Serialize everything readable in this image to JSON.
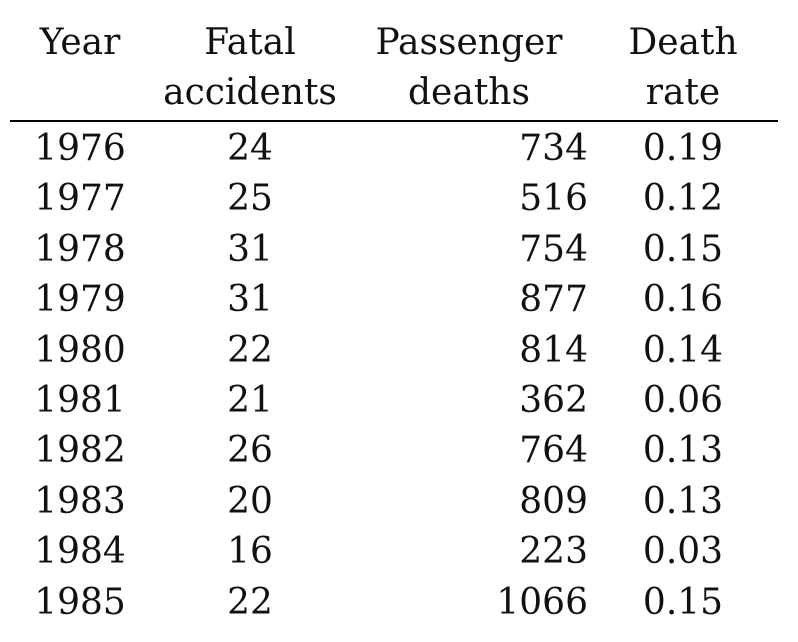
{
  "table": {
    "headers": [
      {
        "line1": "Year",
        "line2": ""
      },
      {
        "line1": "Fatal",
        "line2": "accidents"
      },
      {
        "line1": "Passenger",
        "line2": "deaths"
      },
      {
        "line1": "Death",
        "line2": "rate"
      }
    ],
    "rows": [
      {
        "year": "1976",
        "fatal": "24",
        "deaths": "734",
        "rate": "0.19"
      },
      {
        "year": "1977",
        "fatal": "25",
        "deaths": "516",
        "rate": "0.12"
      },
      {
        "year": "1978",
        "fatal": "31",
        "deaths": "754",
        "rate": "0.15"
      },
      {
        "year": "1979",
        "fatal": "31",
        "deaths": "877",
        "rate": "0.16"
      },
      {
        "year": "1980",
        "fatal": "22",
        "deaths": "814",
        "rate": "0.14"
      },
      {
        "year": "1981",
        "fatal": "21",
        "deaths": "362",
        "rate": "0.06"
      },
      {
        "year": "1982",
        "fatal": "26",
        "deaths": "764",
        "rate": "0.13"
      },
      {
        "year": "1983",
        "fatal": "20",
        "deaths": "809",
        "rate": "0.13"
      },
      {
        "year": "1984",
        "fatal": "16",
        "deaths": "223",
        "rate": "0.03"
      },
      {
        "year": "1985",
        "fatal": "22",
        "deaths": "1066",
        "rate": "0.15"
      }
    ]
  }
}
